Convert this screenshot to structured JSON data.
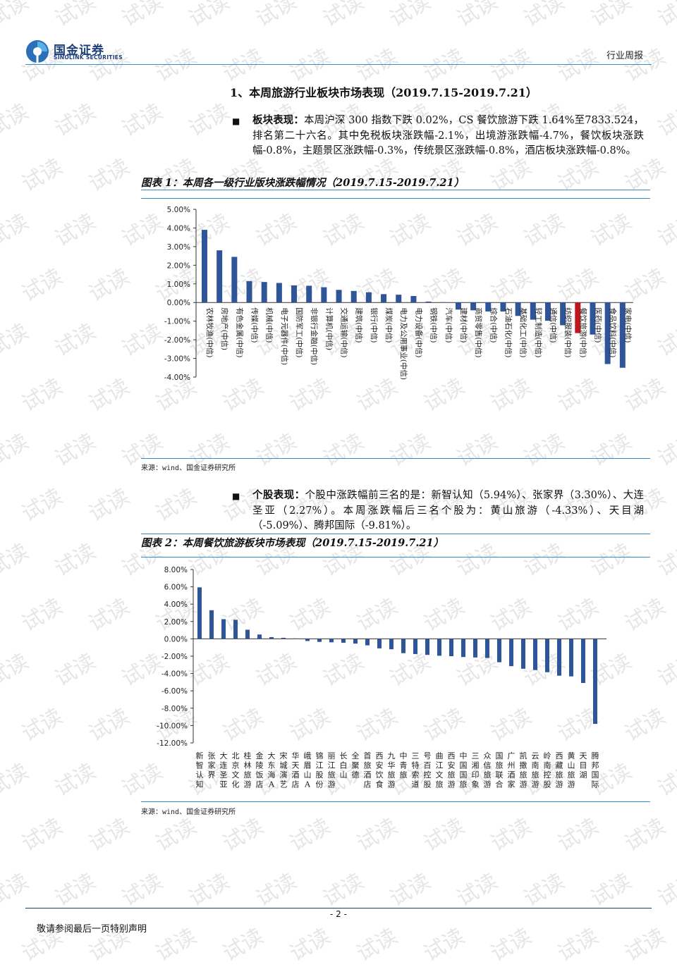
{
  "header": {
    "brand_cn": "国金证券",
    "brand_en": "SINOLINK SECURITIES",
    "report_type": "行业周报"
  },
  "section": {
    "title": "1、本周旅游行业板块市场表现（2019.7.15-2019.7.21）"
  },
  "para1": {
    "bullet": "■",
    "label": "板块表现：",
    "text": "本周沪深 300 指数下跌 0.02%，CS 餐饮旅游下跌 1.64%至7833.524，排名第二十六名。其中免税板块涨跌幅-2.1%，出境游涨跌幅-4.7%，餐饮板块涨跌幅-0.8%，主题景区涨跌幅-0.3%，传统景区涨跌幅-0.8%，酒店板块涨跌幅-0.8%。"
  },
  "figure1": {
    "title": "图表 1：本周各一级行业版块涨跌幅情况（2019.7.15-2019.7.21）",
    "source": "来源：wind、国金证券研究所"
  },
  "para2": {
    "bullet": "■",
    "label": "个股表现：",
    "text": "个股中涨跌幅前三名的是：新智认知（5.94%）、张家界（3.30%）、大连圣亚（2.27%）。本周涨跌幅后三名个股为：黄山旅游（-4.33%）、天目湖（-5.09%）、腾邦国际（-9.81%）。"
  },
  "figure2": {
    "title": "图表 2：本周餐饮旅游板块市场表现（2019.7.15-2019.7.21）",
    "source": "来源：wind、国金证券研究所"
  },
  "footer": {
    "page": "- 2 -",
    "disclaimer": "敬请参阅最后一页特别声明"
  },
  "colors": {
    "bar": "#2e5597",
    "highlight": "#c0171e",
    "rule": "#2f8fd0",
    "brand": "#1c3f7a"
  },
  "chart_data": [
    {
      "type": "bar",
      "title": "图表 1：本周各一级行业版块涨跌幅情况（2019.7.15-2019.7.21）",
      "ylim": [
        -4,
        5
      ],
      "yticks": [
        "5.00%",
        "4.00%",
        "3.00%",
        "2.00%",
        "1.00%",
        "0.00%",
        "-1.00%",
        "-2.00%",
        "-3.00%",
        "-4.00%"
      ],
      "categories": [
        "农林牧渔(中信)",
        "房地产(中信)",
        "有色金属(中信)",
        "传媒(中信)",
        "机械(中信)",
        "电子元器件(中信)",
        "国防军工(中信)",
        "非银行金融(中信)",
        "计算机(中信)",
        "交通运输(中信)",
        "建筑(中信)",
        "银行(中信)",
        "煤炭(中信)",
        "电力及公用事业(中信)",
        "电力设备(中信)",
        "钢铁(中信)",
        "汽车(中信)",
        "建材(中信)",
        "商贸零售(中信)",
        "综合(中信)",
        "石油石化(中信)",
        "基础化工(中信)",
        "轻工制造(中信)",
        "通信(中信)",
        "纺织服装(中信)",
        "餐饮旅游(中信)",
        "医药(中信)",
        "食品饮料(中信)",
        "家电(中信)"
      ],
      "values": [
        3.9,
        2.8,
        2.45,
        1.15,
        1.1,
        1.05,
        0.92,
        0.9,
        0.82,
        0.68,
        0.62,
        0.55,
        0.45,
        0.42,
        0.35,
        0.05,
        0.02,
        -0.38,
        -0.42,
        -0.48,
        -0.48,
        -0.72,
        -0.92,
        -0.98,
        -1.22,
        -1.64,
        -1.72,
        -3.3,
        -3.5
      ],
      "highlight_index": 25
    },
    {
      "type": "bar",
      "title": "图表 2：本周餐饮旅游板块市场表现（2019.7.15-2019.7.21）",
      "ylim": [
        -12,
        8
      ],
      "yticks": [
        "8.00%",
        "6.00%",
        "4.00%",
        "2.00%",
        "0.00%",
        "-2.00%",
        "-4.00%",
        "-6.00%",
        "-8.00%",
        "-10.00%",
        "-12.00%"
      ],
      "categories": [
        "新智认知",
        "张家界",
        "大连圣亚",
        "北京文化",
        "桂林旅游",
        "金陵饭店",
        "大东海A",
        "宋城演艺",
        "华天酒店",
        "峨眉山A",
        "锦江股份",
        "丽江旅游",
        "长白山",
        "全聚德",
        "首旅酒店",
        "西安饮食",
        "九华旅游",
        "中青旅",
        "三特索道",
        "号百控股",
        "曲江文旅",
        "西安旅游",
        "中国国旅",
        "三湘印象",
        "众信旅游",
        "国旅联合",
        "广州酒家",
        "凯撒旅游",
        "云南旅游",
        "岭南控股",
        "西藏旅游",
        "黄山旅游",
        "天目湖",
        "腾邦国际"
      ],
      "values": [
        5.94,
        3.3,
        2.27,
        2.2,
        1.05,
        0.5,
        0.2,
        0.12,
        0.05,
        -0.25,
        -0.35,
        -0.4,
        -0.45,
        -0.55,
        -0.75,
        -1.1,
        -1.2,
        -1.65,
        -1.75,
        -1.85,
        -1.95,
        -2.0,
        -2.1,
        -2.15,
        -2.2,
        -2.7,
        -3.15,
        -3.45,
        -3.6,
        -3.85,
        -4.25,
        -4.33,
        -5.09,
        -9.81
      ]
    }
  ]
}
